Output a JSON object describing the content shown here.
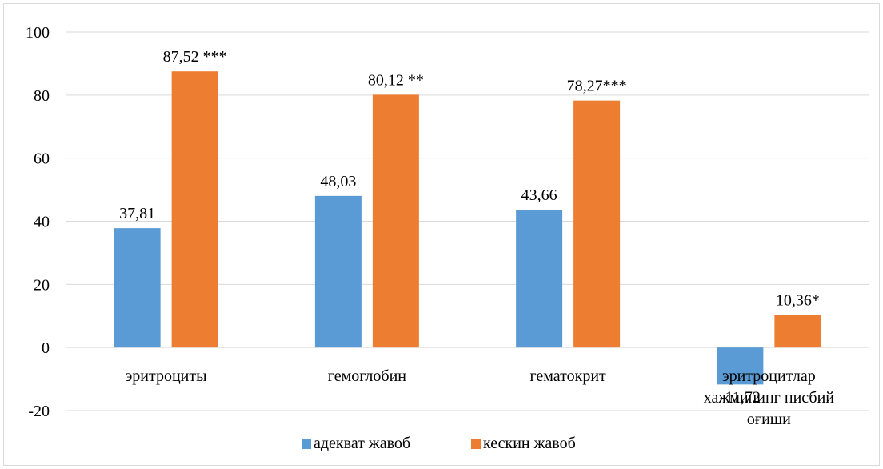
{
  "chart_data": {
    "type": "bar",
    "categories": [
      [
        "эритроциты"
      ],
      [
        "гемоглобин"
      ],
      [
        "гематокрит"
      ],
      [
        "эритроцитлар",
        "хажмининг нисбий",
        "оғиши"
      ]
    ],
    "series": [
      {
        "name": "адекват жавоб",
        "color": "#5b9bd5",
        "values": [
          37.81,
          48.03,
          43.66,
          -11.72
        ],
        "labels": [
          "37,81",
          "48,03",
          "43,66",
          "-11,72"
        ]
      },
      {
        "name": "кескин жавоб",
        "color": "#ed7d31",
        "values": [
          87.52,
          80.12,
          78.27,
          10.36
        ],
        "labels": [
          "87,52 ***",
          "80,12 **",
          "78,27***",
          "10,36*"
        ]
      }
    ],
    "yticks": [
      "100",
      "80",
      "60",
      "40",
      "20",
      "0",
      "-20"
    ],
    "ylim": [
      -20,
      100
    ],
    "grid": true,
    "legend_position": "bottom"
  }
}
